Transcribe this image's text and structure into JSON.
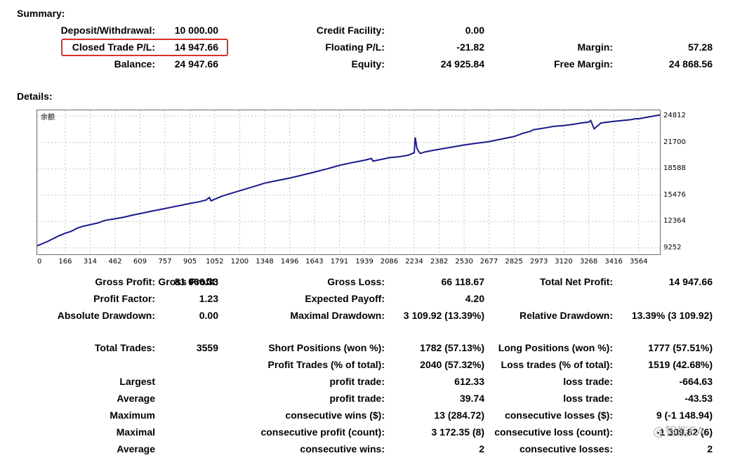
{
  "summary": {
    "title": "Summary:",
    "deposit_label": "Deposit/Withdrawal:",
    "deposit_value": "10 000.00",
    "credit_label": "Credit Facility:",
    "credit_value": "0.00",
    "closed_pl_label": "Closed Trade P/L:",
    "closed_pl_value": "14 947.66",
    "floating_label": "Floating P/L:",
    "floating_value": "-21.82",
    "margin_label": "Margin:",
    "margin_value": "57.28",
    "balance_label": "Balance:",
    "balance_value": "24 947.66",
    "equity_label": "Equity:",
    "equity_value": "24 925.84",
    "free_margin_label": "Free Margin:",
    "free_margin_value": "24 868.56"
  },
  "details": {
    "title": "Details:"
  },
  "chart_data": {
    "type": "line",
    "title": "余额",
    "x_ticks": [
      0,
      166,
      314,
      462,
      609,
      757,
      905,
      1052,
      1200,
      1348,
      1496,
      1643,
      1791,
      1939,
      2086,
      2234,
      2382,
      2530,
      2677,
      2825,
      2973,
      3120,
      3268,
      3416,
      3564
    ],
    "y_ticks": [
      9252,
      12364,
      15476,
      18588,
      21700,
      24812
    ],
    "xlim": [
      0,
      3690
    ],
    "ylim": [
      8500,
      25500
    ],
    "grid": true,
    "color": "#1a1a8c",
    "series": [
      {
        "x": [
          0,
          60,
          120,
          166,
          200,
          240,
          270,
          314,
          360,
          400,
          462,
          520,
          560,
          609,
          680,
          757,
          830,
          905,
          960,
          1000,
          1020,
          1030,
          1052,
          1100,
          1200,
          1300,
          1348,
          1420,
          1496,
          1560,
          1643,
          1720,
          1791,
          1860,
          1939,
          1980,
          1990,
          2040,
          2086,
          2140,
          2200,
          2234,
          2240,
          2250,
          2262,
          2270,
          2300,
          2382,
          2440,
          2530,
          2600,
          2677,
          2750,
          2825,
          2880,
          2920,
          2940,
          2973,
          3020,
          3060,
          3120,
          3180,
          3220,
          3268,
          3280,
          3300,
          3340,
          3416,
          3470,
          3520,
          3540,
          3564,
          3620,
          3690
        ],
        "y": [
          9500,
          10000,
          10600,
          11000,
          11200,
          11600,
          11800,
          12000,
          12200,
          12500,
          12700,
          12900,
          13100,
          13300,
          13600,
          13900,
          14200,
          14500,
          14700,
          14900,
          15200,
          14800,
          15000,
          15400,
          16000,
          16600,
          16900,
          17200,
          17500,
          17800,
          18200,
          18600,
          19000,
          19300,
          19600,
          19800,
          19500,
          19700,
          19900,
          20000,
          20200,
          20500,
          22300,
          21000,
          20600,
          20400,
          20600,
          20900,
          21100,
          21400,
          21600,
          21800,
          22100,
          22400,
          22800,
          23000,
          23200,
          23300,
          23450,
          23600,
          23700,
          23850,
          24000,
          24100,
          24300,
          23300,
          24000,
          24200,
          24300,
          24400,
          24500,
          24500,
          24700,
          24950
        ]
      }
    ]
  },
  "stats": {
    "gross_profit_label": "Gross Profit:",
    "gross_profit_value": "81 066.33",
    "gross_loss_label": "Gross Loss:",
    "gross_loss_value": "66 118.67",
    "net_profit_label": "Total Net Profit:",
    "net_profit_value": "14 947.66",
    "profit_factor_label": "Profit Factor:",
    "profit_factor_value": "1.23",
    "expected_payoff_label": "Expected Payoff:",
    "expected_payoff_value": "4.20",
    "abs_dd_label": "Absolute Drawdown:",
    "abs_dd_value": "0.00",
    "max_dd_label": "Maximal Drawdown:",
    "max_dd_value": "3 109.92 (13.39%)",
    "rel_dd_label": "Relative Drawdown:",
    "rel_dd_value": "13.39% (3 109.92)",
    "total_trades_label": "Total Trades:",
    "total_trades_value": "3559",
    "short_label": "Short Positions (won %):",
    "short_value": "1782 (57.13%)",
    "long_label": "Long Positions (won %):",
    "long_value": "1777 (57.51%)",
    "profit_trades_label": "Profit Trades (% of total):",
    "profit_trades_value": "2040 (57.32%)",
    "loss_trades_label": "Loss trades (% of total):",
    "loss_trades_value": "1519 (42.68%)",
    "largest_label": "Largest",
    "largest_profit_label": "profit trade:",
    "largest_profit_value": "612.33",
    "largest_loss_label": "loss trade:",
    "largest_loss_value": "-664.63",
    "average_label": "Average",
    "average_profit_label": "profit trade:",
    "average_profit_value": "39.74",
    "average_loss_label": "loss trade:",
    "average_loss_value": "-43.53",
    "maximum_label": "Maximum",
    "max_wins_label": "consecutive wins ($):",
    "max_wins_value": "13 (284.72)",
    "max_losses_label": "consecutive losses ($):",
    "max_losses_value": "9 (-1 148.94)",
    "maximal_label": "Maximal",
    "maximal_profit_label": "consecutive profit (count):",
    "maximal_profit_value": "3 172.35 (8)",
    "maximal_loss_label": "consecutive loss (count):",
    "maximal_loss_value": "-1 309.82 (6)",
    "average2_label": "Average",
    "avg_wins_label": "consecutive wins:",
    "avg_wins_value": "2",
    "avg_losses_label": "consecutive losses:",
    "avg_losses_value": "2"
  },
  "watermark": "@智能EA"
}
